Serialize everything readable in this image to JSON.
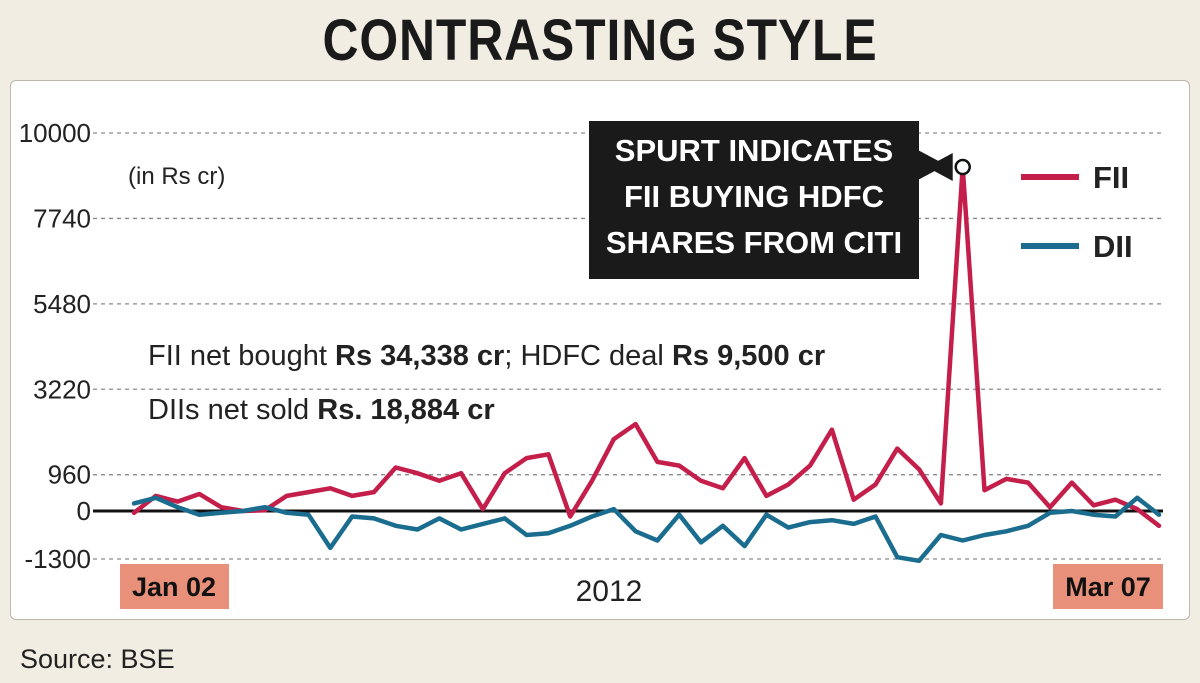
{
  "headline": "CONTRASTING STYLE",
  "source": "Source: BSE",
  "colors": {
    "fii": "#c41e4a",
    "dii": "#1a6d8e",
    "date_box": "#e8907a",
    "callout_bg": "#1a1a1a"
  },
  "chart_data": {
    "type": "line",
    "title": "CONTRASTING STYLE",
    "unit_label": "(in Rs cr)",
    "xlabel": "2012",
    "x_start_label": "Jan 02",
    "x_end_label": "Mar 07",
    "ylim": [
      -1300,
      10000
    ],
    "yticks": [
      10000,
      7740,
      5480,
      3220,
      960,
      0,
      -1300
    ],
    "ytick_labels": [
      "10000",
      "7740",
      "5480",
      "3220",
      "960",
      "0",
      "-1300"
    ],
    "grid": "horizontal dashed",
    "legend_position": "top-right",
    "notes": [
      {
        "plain": "FII net bought ",
        "bold": "Rs 34,338 cr",
        "plain2": "; HDFC deal ",
        "bold2": "Rs 9,500 cr"
      },
      {
        "plain": "DIIs net sold ",
        "bold": "Rs. 18,884 cr",
        "plain2": "",
        "bold2": ""
      }
    ],
    "callout": [
      "SPURT INDICATES",
      "FII BUYING HDFC",
      "SHARES FROM CITI"
    ],
    "callout_index": 40,
    "series": [
      {
        "name": "FII",
        "values": [
          -50,
          400,
          250,
          450,
          100,
          0,
          20,
          400,
          500,
          600,
          400,
          500,
          1150,
          1000,
          800,
          1000,
          50,
          1000,
          1400,
          1500,
          -150,
          800,
          1900,
          2300,
          1300,
          1200,
          800,
          600,
          1400,
          400,
          700,
          1200,
          2150,
          300,
          700,
          1650,
          1100,
          200,
          9100,
          550,
          850,
          750,
          100,
          750,
          150,
          300,
          50,
          -400
        ]
      },
      {
        "name": "DII",
        "values": [
          200,
          350,
          100,
          -100,
          -50,
          0,
          100,
          -50,
          -100,
          -1000,
          -150,
          -200,
          -400,
          -500,
          -200,
          -500,
          -350,
          -200,
          -650,
          -600,
          -400,
          -150,
          50,
          -550,
          -800,
          -100,
          -850,
          -400,
          -950,
          -100,
          -450,
          -300,
          -250,
          -350,
          -150,
          -1250,
          -1350,
          -650,
          -800,
          -650,
          -550,
          -400,
          -50,
          0,
          -100,
          -150,
          350,
          -100
        ]
      }
    ]
  }
}
